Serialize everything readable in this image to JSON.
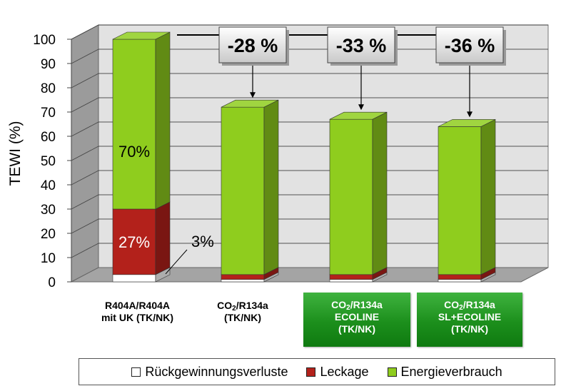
{
  "chart_data": {
    "type": "bar",
    "stacked": true,
    "three_d": true,
    "ylabel": "TEWI (%)",
    "ylim": [
      0,
      100
    ],
    "yticks": [
      "0",
      "10",
      "20",
      "30",
      "40",
      "50",
      "60",
      "70",
      "80",
      "90",
      "100"
    ],
    "grid": true,
    "legend_position": "bottom",
    "categories": [
      {
        "lines": [
          "R404A/R404A",
          "mit UK (TK/NK)"
        ],
        "highlight": false
      },
      {
        "lines": [
          [
            "CO",
            "2",
            "/R134a"
          ],
          "(TK/NK)"
        ],
        "highlight": false
      },
      {
        "lines": [
          [
            "CO",
            "2",
            "/R134a"
          ],
          "ECOLINE",
          "(TK/NK)"
        ],
        "highlight": true
      },
      {
        "lines": [
          [
            "CO",
            "2",
            "/R134a"
          ],
          "SL+ECOLINE",
          "(TK/NK)"
        ],
        "highlight": true
      }
    ],
    "series": [
      {
        "name": "Rückgewinnungsverluste",
        "color": "#ffffff",
        "values": [
          3,
          1,
          1,
          1
        ]
      },
      {
        "name": "Leckage",
        "color": "#b3211b",
        "values": [
          27,
          2,
          2,
          2
        ]
      },
      {
        "name": "Energieverbrauch",
        "color": "#8fcd1e",
        "values": [
          70,
          69,
          64,
          61
        ]
      }
    ],
    "segment_labels": [
      {
        "bar": 0,
        "series": 2,
        "text": "70%",
        "color": "#000000"
      },
      {
        "bar": 0,
        "series": 1,
        "text": "27%",
        "color": "#ffffff"
      },
      {
        "bar": 0,
        "series": 0,
        "text": "3%",
        "color": "#000000",
        "callout": true
      }
    ],
    "reductions": [
      {
        "bar": 1,
        "text": "-28 %"
      },
      {
        "bar": 2,
        "text": "-33 %"
      },
      {
        "bar": 3,
        "text": "-36 %"
      }
    ]
  }
}
